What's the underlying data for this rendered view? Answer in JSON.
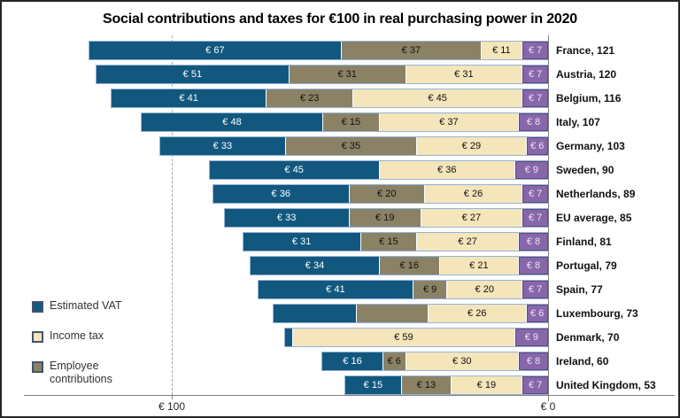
{
  "title": "Social contributions and taxes for €100 in real purchasing power in 2020",
  "x_axis": {
    "left_tick_label": "€ 100",
    "right_tick_label": "€ 0"
  },
  "legend": {
    "items": [
      {
        "key": "estimated_vat",
        "label": "Estimated VAT"
      },
      {
        "key": "income_tax",
        "label": "Income tax"
      },
      {
        "key": "employee_contributions",
        "label": "Employee contributions"
      }
    ]
  },
  "colors": {
    "estimated_vat": "#12587e",
    "employee_contributions": "#8b8265",
    "income_tax": "#f4e5ba",
    "other_purple": "#8767a9",
    "bar_outline": "#95b3d7",
    "purple_outline": "#5e4a7d",
    "axis_line": "#808080",
    "dashed_gridline": "#a6a6a6"
  },
  "chart_data": {
    "type": "bar",
    "orientation": "horizontal",
    "stacked": true,
    "right_aligned_at_zero": true,
    "x_axis_ticks": [
      100,
      0
    ],
    "x_axis_tick_labels": [
      "€ 100",
      "€ 0"
    ],
    "segment_order": [
      "estimated_vat",
      "employee_contributions",
      "income_tax",
      "other_purple"
    ],
    "segment_legend_names": [
      "Estimated VAT",
      "Employee contributions",
      "Income tax",
      ""
    ],
    "rows": [
      {
        "country": "France",
        "total": 121,
        "label": "France, 121",
        "segments": [
          {
            "k": "estimated_vat",
            "v": 67,
            "t": "€ 67"
          },
          {
            "k": "employee_contributions",
            "v": 37,
            "t": "€ 37"
          },
          {
            "k": "income_tax",
            "v": 11,
            "t": "€ 11"
          },
          {
            "k": "other_purple",
            "v": 7,
            "t": "€ 7"
          }
        ]
      },
      {
        "country": "Austria",
        "total": 120,
        "label": "Austria, 120",
        "segments": [
          {
            "k": "estimated_vat",
            "v": 51,
            "t": "€ 51"
          },
          {
            "k": "employee_contributions",
            "v": 31,
            "t": "€ 31"
          },
          {
            "k": "income_tax",
            "v": 31,
            "t": "€ 31"
          },
          {
            "k": "other_purple",
            "v": 7,
            "t": "€ 7"
          }
        ]
      },
      {
        "country": "Belgium",
        "total": 116,
        "label": "Belgium, 116",
        "segments": [
          {
            "k": "estimated_vat",
            "v": 41,
            "t": "€ 41"
          },
          {
            "k": "employee_contributions",
            "v": 23,
            "t": "€ 23"
          },
          {
            "k": "income_tax",
            "v": 45,
            "t": "€ 45"
          },
          {
            "k": "other_purple",
            "v": 7,
            "t": "€ 7"
          }
        ]
      },
      {
        "country": "Italy",
        "total": 107,
        "label": "Italy, 107",
        "segments": [
          {
            "k": "estimated_vat",
            "v": 48,
            "t": "€ 48"
          },
          {
            "k": "employee_contributions",
            "v": 15,
            "t": "€ 15"
          },
          {
            "k": "income_tax",
            "v": 37,
            "t": "€ 37"
          },
          {
            "k": "other_purple",
            "v": 8,
            "t": "€ 8"
          }
        ]
      },
      {
        "country": "Germany",
        "total": 103,
        "label": "Germany, 103",
        "segments": [
          {
            "k": "estimated_vat",
            "v": 33,
            "t": "€ 33"
          },
          {
            "k": "employee_contributions",
            "v": 35,
            "t": "€ 35"
          },
          {
            "k": "income_tax",
            "v": 29,
            "t": "€ 29"
          },
          {
            "k": "other_purple",
            "v": 6,
            "t": "€ 6"
          }
        ]
      },
      {
        "country": "Sweden",
        "total": 90,
        "label": "Sweden, 90",
        "segments": [
          {
            "k": "estimated_vat",
            "v": 45,
            "t": "€ 45"
          },
          {
            "k": "income_tax",
            "v": 36,
            "t": "€ 36"
          },
          {
            "k": "other_purple",
            "v": 9,
            "t": "€ 9"
          }
        ]
      },
      {
        "country": "Netherlands",
        "total": 89,
        "label": "Netherlands, 89",
        "segments": [
          {
            "k": "estimated_vat",
            "v": 36,
            "t": "€ 36"
          },
          {
            "k": "employee_contributions",
            "v": 20,
            "t": "€ 20"
          },
          {
            "k": "income_tax",
            "v": 26,
            "t": "€ 26"
          },
          {
            "k": "other_purple",
            "v": 7,
            "t": "€ 7"
          }
        ]
      },
      {
        "country": "EU average",
        "total": 85,
        "label": "EU average, 85",
        "segments": [
          {
            "k": "estimated_vat",
            "v": 33,
            "t": "€ 33"
          },
          {
            "k": "employee_contributions",
            "v": 19,
            "t": "€ 19"
          },
          {
            "k": "income_tax",
            "v": 27,
            "t": "€ 27"
          },
          {
            "k": "other_purple",
            "v": 7,
            "t": "€ 7"
          }
        ]
      },
      {
        "country": "Finland",
        "total": 81,
        "label": "Finland, 81",
        "segments": [
          {
            "k": "estimated_vat",
            "v": 31,
            "t": "€ 31"
          },
          {
            "k": "employee_contributions",
            "v": 15,
            "t": "€ 15"
          },
          {
            "k": "income_tax",
            "v": 27,
            "t": "€ 27"
          },
          {
            "k": "other_purple",
            "v": 8,
            "t": "€ 8"
          }
        ]
      },
      {
        "country": "Portugal",
        "total": 79,
        "label": "Portugal, 79",
        "segments": [
          {
            "k": "estimated_vat",
            "v": 34,
            "t": "€ 34"
          },
          {
            "k": "employee_contributions",
            "v": 16,
            "t": "€ 16"
          },
          {
            "k": "income_tax",
            "v": 21,
            "t": "€ 21"
          },
          {
            "k": "other_purple",
            "v": 8,
            "t": "€ 8"
          }
        ]
      },
      {
        "country": "Spain",
        "total": 77,
        "label": "Spain, 77",
        "segments": [
          {
            "k": "estimated_vat",
            "v": 41,
            "t": "€ 41"
          },
          {
            "k": "employee_contributions",
            "v": 9,
            "t": "€ 9"
          },
          {
            "k": "income_tax",
            "v": 20,
            "t": "€ 20"
          },
          {
            "k": "other_purple",
            "v": 7,
            "t": "€ 7"
          }
        ]
      },
      {
        "country": "Luxembourg",
        "total": 73,
        "label": "Luxembourg, 73",
        "segments": [
          {
            "k": "estimated_vat",
            "v": 22,
            "t": ""
          },
          {
            "k": "employee_contributions",
            "v": 19,
            "t": ""
          },
          {
            "k": "income_tax",
            "v": 26,
            "t": "€ 26"
          },
          {
            "k": "other_purple",
            "v": 6,
            "t": "€ 6"
          }
        ]
      },
      {
        "country": "Denmark",
        "total": 70,
        "label": "Denmark, 70",
        "segments": [
          {
            "k": "estimated_vat",
            "v": 2,
            "t": ""
          },
          {
            "k": "income_tax",
            "v": 59,
            "t": "€ 59"
          },
          {
            "k": "other_purple",
            "v": 9,
            "t": "€ 9"
          }
        ]
      },
      {
        "country": "Ireland",
        "total": 60,
        "label": "Ireland, 60",
        "segments": [
          {
            "k": "estimated_vat",
            "v": 16,
            "t": "€ 16"
          },
          {
            "k": "employee_contributions",
            "v": 6,
            "t": "€ 6"
          },
          {
            "k": "income_tax",
            "v": 30,
            "t": "€ 30"
          },
          {
            "k": "other_purple",
            "v": 8,
            "t": "€ 8"
          }
        ]
      },
      {
        "country": "United Kingdom",
        "total": 53,
        "label": "United Kingdom, 53",
        "segments": [
          {
            "k": "estimated_vat",
            "v": 15,
            "t": "€ 15"
          },
          {
            "k": "employee_contributions",
            "v": 13,
            "t": "€ 13"
          },
          {
            "k": "income_tax",
            "v": 19,
            "t": "€ 19"
          },
          {
            "k": "other_purple",
            "v": 7,
            "t": "€ 7"
          }
        ]
      }
    ]
  }
}
